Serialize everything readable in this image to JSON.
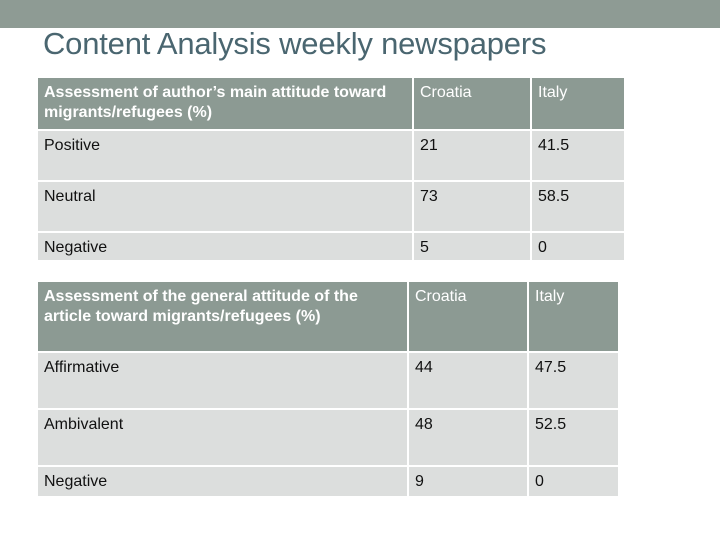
{
  "title": "Content Analysis weekly newspapers",
  "table_author": {
    "header": [
      "Assessment of author’s main attitude toward migrants/refugees (%)",
      "Croatia",
      "Italy"
    ],
    "rows": [
      [
        "Positive",
        "21",
        "41.5"
      ],
      [
        "Neutral",
        "73",
        "58.5"
      ],
      [
        "Negative",
        "5",
        "0"
      ]
    ]
  },
  "table_article": {
    "header": [
      "Assessment of the general attitude of the article toward migrants/refugees (%)",
      "Croatia",
      "Italy"
    ],
    "rows": [
      [
        "Affirmative",
        "44",
        "47.5"
      ],
      [
        "Ambivalent",
        "48",
        "52.5"
      ],
      [
        "Negative",
        "9",
        "0"
      ]
    ]
  },
  "colors": {
    "band": "#8e9b94",
    "header_bg": "#8c9a93",
    "cell_bg": "#dcdedd",
    "title": "#4a6670"
  }
}
